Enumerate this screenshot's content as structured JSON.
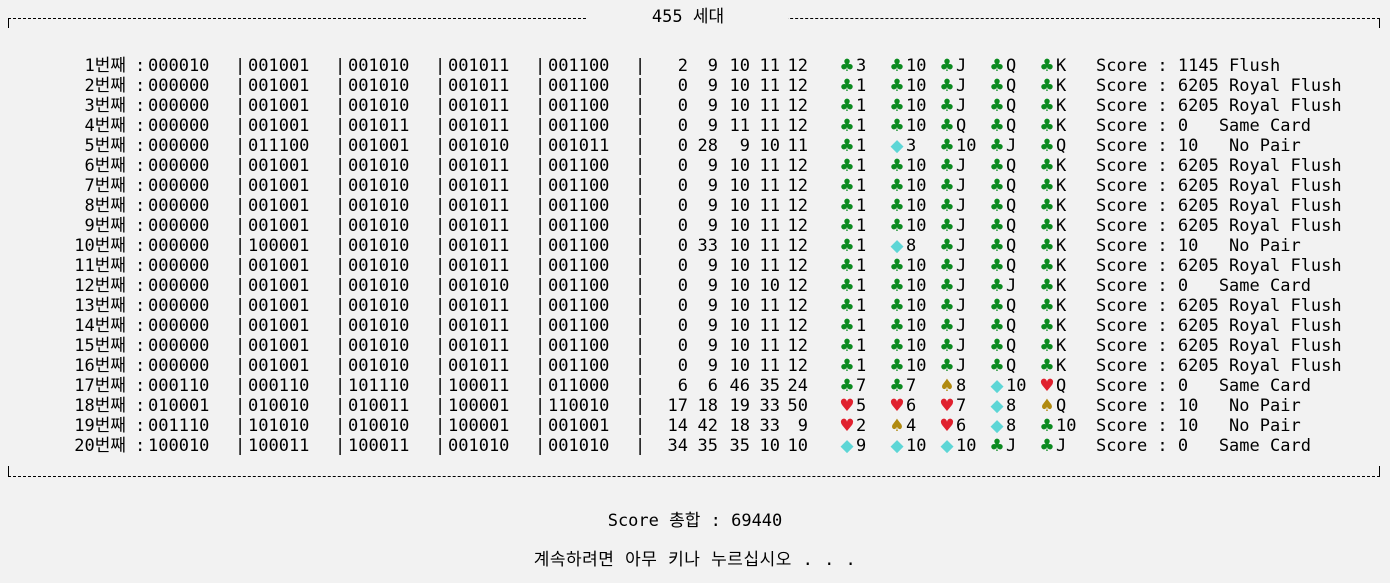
{
  "colors": {
    "background": "#f2f2f2",
    "text": "#000000",
    "clubs": "#0b8a1f",
    "diamonds": "#5dd6d6",
    "hearts": "#e0202e",
    "spades": "#b08a10"
  },
  "generation_title": "455 세대",
  "total_line": "Score 총합 : 69440",
  "continue_prompt": "계속하려면 아무 키나 누르십시오 . . .",
  "rows": [
    {
      "label": "1번째",
      "codes": [
        "000010",
        "001001",
        "001010",
        "001011",
        "001100"
      ],
      "nums": [
        "2",
        "9",
        "10",
        "11",
        "12"
      ],
      "cards": [
        {
          "suit": "♣",
          "color": "clubs",
          "rank": "3"
        },
        {
          "suit": "♣",
          "color": "clubs",
          "rank": "10"
        },
        {
          "suit": "♣",
          "color": "clubs",
          "rank": "J"
        },
        {
          "suit": "♣",
          "color": "clubs",
          "rank": "Q"
        },
        {
          "suit": "♣",
          "color": "clubs",
          "rank": "K"
        }
      ],
      "score": "Score : 1145 Flush"
    },
    {
      "label": "2번째",
      "codes": [
        "000000",
        "001001",
        "001010",
        "001011",
        "001100"
      ],
      "nums": [
        "0",
        "9",
        "10",
        "11",
        "12"
      ],
      "cards": [
        {
          "suit": "♣",
          "color": "clubs",
          "rank": "1"
        },
        {
          "suit": "♣",
          "color": "clubs",
          "rank": "10"
        },
        {
          "suit": "♣",
          "color": "clubs",
          "rank": "J"
        },
        {
          "suit": "♣",
          "color": "clubs",
          "rank": "Q"
        },
        {
          "suit": "♣",
          "color": "clubs",
          "rank": "K"
        }
      ],
      "score": "Score : 6205 Royal Flush"
    },
    {
      "label": "3번째",
      "codes": [
        "000000",
        "001001",
        "001010",
        "001011",
        "001100"
      ],
      "nums": [
        "0",
        "9",
        "10",
        "11",
        "12"
      ],
      "cards": [
        {
          "suit": "♣",
          "color": "clubs",
          "rank": "1"
        },
        {
          "suit": "♣",
          "color": "clubs",
          "rank": "10"
        },
        {
          "suit": "♣",
          "color": "clubs",
          "rank": "J"
        },
        {
          "suit": "♣",
          "color": "clubs",
          "rank": "Q"
        },
        {
          "suit": "♣",
          "color": "clubs",
          "rank": "K"
        }
      ],
      "score": "Score : 6205 Royal Flush"
    },
    {
      "label": "4번째",
      "codes": [
        "000000",
        "001001",
        "001011",
        "001011",
        "001100"
      ],
      "nums": [
        "0",
        "9",
        "11",
        "11",
        "12"
      ],
      "cards": [
        {
          "suit": "♣",
          "color": "clubs",
          "rank": "1"
        },
        {
          "suit": "♣",
          "color": "clubs",
          "rank": "10"
        },
        {
          "suit": "♣",
          "color": "clubs",
          "rank": "Q"
        },
        {
          "suit": "♣",
          "color": "clubs",
          "rank": "Q"
        },
        {
          "suit": "♣",
          "color": "clubs",
          "rank": "K"
        }
      ],
      "score": "Score : 0   Same Card"
    },
    {
      "label": "5번째",
      "codes": [
        "000000",
        "011100",
        "001001",
        "001010",
        "001011"
      ],
      "nums": [
        "0",
        "28",
        "9",
        "10",
        "11"
      ],
      "cards": [
        {
          "suit": "♣",
          "color": "clubs",
          "rank": "1"
        },
        {
          "suit": "◆",
          "color": "diamonds",
          "rank": "3"
        },
        {
          "suit": "♣",
          "color": "clubs",
          "rank": "10"
        },
        {
          "suit": "♣",
          "color": "clubs",
          "rank": "J"
        },
        {
          "suit": "♣",
          "color": "clubs",
          "rank": "Q"
        }
      ],
      "score": "Score : 10   No Pair"
    },
    {
      "label": "6번째",
      "codes": [
        "000000",
        "001001",
        "001010",
        "001011",
        "001100"
      ],
      "nums": [
        "0",
        "9",
        "10",
        "11",
        "12"
      ],
      "cards": [
        {
          "suit": "♣",
          "color": "clubs",
          "rank": "1"
        },
        {
          "suit": "♣",
          "color": "clubs",
          "rank": "10"
        },
        {
          "suit": "♣",
          "color": "clubs",
          "rank": "J"
        },
        {
          "suit": "♣",
          "color": "clubs",
          "rank": "Q"
        },
        {
          "suit": "♣",
          "color": "clubs",
          "rank": "K"
        }
      ],
      "score": "Score : 6205 Royal Flush"
    },
    {
      "label": "7번째",
      "codes": [
        "000000",
        "001001",
        "001010",
        "001011",
        "001100"
      ],
      "nums": [
        "0",
        "9",
        "10",
        "11",
        "12"
      ],
      "cards": [
        {
          "suit": "♣",
          "color": "clubs",
          "rank": "1"
        },
        {
          "suit": "♣",
          "color": "clubs",
          "rank": "10"
        },
        {
          "suit": "♣",
          "color": "clubs",
          "rank": "J"
        },
        {
          "suit": "♣",
          "color": "clubs",
          "rank": "Q"
        },
        {
          "suit": "♣",
          "color": "clubs",
          "rank": "K"
        }
      ],
      "score": "Score : 6205 Royal Flush"
    },
    {
      "label": "8번째",
      "codes": [
        "000000",
        "001001",
        "001010",
        "001011",
        "001100"
      ],
      "nums": [
        "0",
        "9",
        "10",
        "11",
        "12"
      ],
      "cards": [
        {
          "suit": "♣",
          "color": "clubs",
          "rank": "1"
        },
        {
          "suit": "♣",
          "color": "clubs",
          "rank": "10"
        },
        {
          "suit": "♣",
          "color": "clubs",
          "rank": "J"
        },
        {
          "suit": "♣",
          "color": "clubs",
          "rank": "Q"
        },
        {
          "suit": "♣",
          "color": "clubs",
          "rank": "K"
        }
      ],
      "score": "Score : 6205 Royal Flush"
    },
    {
      "label": "9번째",
      "codes": [
        "000000",
        "001001",
        "001010",
        "001011",
        "001100"
      ],
      "nums": [
        "0",
        "9",
        "10",
        "11",
        "12"
      ],
      "cards": [
        {
          "suit": "♣",
          "color": "clubs",
          "rank": "1"
        },
        {
          "suit": "♣",
          "color": "clubs",
          "rank": "10"
        },
        {
          "suit": "♣",
          "color": "clubs",
          "rank": "J"
        },
        {
          "suit": "♣",
          "color": "clubs",
          "rank": "Q"
        },
        {
          "suit": "♣",
          "color": "clubs",
          "rank": "K"
        }
      ],
      "score": "Score : 6205 Royal Flush"
    },
    {
      "label": "10번째",
      "codes": [
        "000000",
        "100001",
        "001010",
        "001011",
        "001100"
      ],
      "nums": [
        "0",
        "33",
        "10",
        "11",
        "12"
      ],
      "cards": [
        {
          "suit": "♣",
          "color": "clubs",
          "rank": "1"
        },
        {
          "suit": "◆",
          "color": "diamonds",
          "rank": "8"
        },
        {
          "suit": "♣",
          "color": "clubs",
          "rank": "J"
        },
        {
          "suit": "♣",
          "color": "clubs",
          "rank": "Q"
        },
        {
          "suit": "♣",
          "color": "clubs",
          "rank": "K"
        }
      ],
      "score": "Score : 10   No Pair"
    },
    {
      "label": "11번째",
      "codes": [
        "000000",
        "001001",
        "001010",
        "001011",
        "001100"
      ],
      "nums": [
        "0",
        "9",
        "10",
        "11",
        "12"
      ],
      "cards": [
        {
          "suit": "♣",
          "color": "clubs",
          "rank": "1"
        },
        {
          "suit": "♣",
          "color": "clubs",
          "rank": "10"
        },
        {
          "suit": "♣",
          "color": "clubs",
          "rank": "J"
        },
        {
          "suit": "♣",
          "color": "clubs",
          "rank": "Q"
        },
        {
          "suit": "♣",
          "color": "clubs",
          "rank": "K"
        }
      ],
      "score": "Score : 6205 Royal Flush"
    },
    {
      "label": "12번째",
      "codes": [
        "000000",
        "001001",
        "001010",
        "001010",
        "001100"
      ],
      "nums": [
        "0",
        "9",
        "10",
        "10",
        "12"
      ],
      "cards": [
        {
          "suit": "♣",
          "color": "clubs",
          "rank": "1"
        },
        {
          "suit": "♣",
          "color": "clubs",
          "rank": "10"
        },
        {
          "suit": "♣",
          "color": "clubs",
          "rank": "J"
        },
        {
          "suit": "♣",
          "color": "clubs",
          "rank": "J"
        },
        {
          "suit": "♣",
          "color": "clubs",
          "rank": "K"
        }
      ],
      "score": "Score : 0   Same Card"
    },
    {
      "label": "13번째",
      "codes": [
        "000000",
        "001001",
        "001010",
        "001011",
        "001100"
      ],
      "nums": [
        "0",
        "9",
        "10",
        "11",
        "12"
      ],
      "cards": [
        {
          "suit": "♣",
          "color": "clubs",
          "rank": "1"
        },
        {
          "suit": "♣",
          "color": "clubs",
          "rank": "10"
        },
        {
          "suit": "♣",
          "color": "clubs",
          "rank": "J"
        },
        {
          "suit": "♣",
          "color": "clubs",
          "rank": "Q"
        },
        {
          "suit": "♣",
          "color": "clubs",
          "rank": "K"
        }
      ],
      "score": "Score : 6205 Royal Flush"
    },
    {
      "label": "14번째",
      "codes": [
        "000000",
        "001001",
        "001010",
        "001011",
        "001100"
      ],
      "nums": [
        "0",
        "9",
        "10",
        "11",
        "12"
      ],
      "cards": [
        {
          "suit": "♣",
          "color": "clubs",
          "rank": "1"
        },
        {
          "suit": "♣",
          "color": "clubs",
          "rank": "10"
        },
        {
          "suit": "♣",
          "color": "clubs",
          "rank": "J"
        },
        {
          "suit": "♣",
          "color": "clubs",
          "rank": "Q"
        },
        {
          "suit": "♣",
          "color": "clubs",
          "rank": "K"
        }
      ],
      "score": "Score : 6205 Royal Flush"
    },
    {
      "label": "15번째",
      "codes": [
        "000000",
        "001001",
        "001010",
        "001011",
        "001100"
      ],
      "nums": [
        "0",
        "9",
        "10",
        "11",
        "12"
      ],
      "cards": [
        {
          "suit": "♣",
          "color": "clubs",
          "rank": "1"
        },
        {
          "suit": "♣",
          "color": "clubs",
          "rank": "10"
        },
        {
          "suit": "♣",
          "color": "clubs",
          "rank": "J"
        },
        {
          "suit": "♣",
          "color": "clubs",
          "rank": "Q"
        },
        {
          "suit": "♣",
          "color": "clubs",
          "rank": "K"
        }
      ],
      "score": "Score : 6205 Royal Flush"
    },
    {
      "label": "16번째",
      "codes": [
        "000000",
        "001001",
        "001010",
        "001011",
        "001100"
      ],
      "nums": [
        "0",
        "9",
        "10",
        "11",
        "12"
      ],
      "cards": [
        {
          "suit": "♣",
          "color": "clubs",
          "rank": "1"
        },
        {
          "suit": "♣",
          "color": "clubs",
          "rank": "10"
        },
        {
          "suit": "♣",
          "color": "clubs",
          "rank": "J"
        },
        {
          "suit": "♣",
          "color": "clubs",
          "rank": "Q"
        },
        {
          "suit": "♣",
          "color": "clubs",
          "rank": "K"
        }
      ],
      "score": "Score : 6205 Royal Flush"
    },
    {
      "label": "17번째",
      "codes": [
        "000110",
        "000110",
        "101110",
        "100011",
        "011000"
      ],
      "nums": [
        "6",
        "6",
        "46",
        "35",
        "24"
      ],
      "cards": [
        {
          "suit": "♣",
          "color": "clubs",
          "rank": "7"
        },
        {
          "suit": "♣",
          "color": "clubs",
          "rank": "7"
        },
        {
          "suit": "♠",
          "color": "spades",
          "rank": "8"
        },
        {
          "suit": "◆",
          "color": "diamonds",
          "rank": "10"
        },
        {
          "suit": "♥",
          "color": "hearts",
          "rank": "Q"
        }
      ],
      "score": "Score : 0   Same Card"
    },
    {
      "label": "18번째",
      "codes": [
        "010001",
        "010010",
        "010011",
        "100001",
        "110010"
      ],
      "nums": [
        "17",
        "18",
        "19",
        "33",
        "50"
      ],
      "cards": [
        {
          "suit": "♥",
          "color": "hearts",
          "rank": "5"
        },
        {
          "suit": "♥",
          "color": "hearts",
          "rank": "6"
        },
        {
          "suit": "♥",
          "color": "hearts",
          "rank": "7"
        },
        {
          "suit": "◆",
          "color": "diamonds",
          "rank": "8"
        },
        {
          "suit": "♠",
          "color": "spades",
          "rank": "Q"
        }
      ],
      "score": "Score : 10   No Pair"
    },
    {
      "label": "19번째",
      "codes": [
        "001110",
        "101010",
        "010010",
        "100001",
        "001001"
      ],
      "nums": [
        "14",
        "42",
        "18",
        "33",
        "9"
      ],
      "cards": [
        {
          "suit": "♥",
          "color": "hearts",
          "rank": "2"
        },
        {
          "suit": "♠",
          "color": "spades",
          "rank": "4"
        },
        {
          "suit": "♥",
          "color": "hearts",
          "rank": "6"
        },
        {
          "suit": "◆",
          "color": "diamonds",
          "rank": "8"
        },
        {
          "suit": "♣",
          "color": "clubs",
          "rank": "10"
        }
      ],
      "score": "Score : 10   No Pair"
    },
    {
      "label": "20번째",
      "codes": [
        "100010",
        "100011",
        "100011",
        "001010",
        "001010"
      ],
      "nums": [
        "34",
        "35",
        "35",
        "10",
        "10"
      ],
      "cards": [
        {
          "suit": "◆",
          "color": "diamonds",
          "rank": "9"
        },
        {
          "suit": "◆",
          "color": "diamonds",
          "rank": "10"
        },
        {
          "suit": "◆",
          "color": "diamonds",
          "rank": "10"
        },
        {
          "suit": "♣",
          "color": "clubs",
          "rank": "J"
        },
        {
          "suit": "♣",
          "color": "clubs",
          "rank": "J"
        }
      ],
      "score": "Score : 0   Same Card"
    }
  ]
}
